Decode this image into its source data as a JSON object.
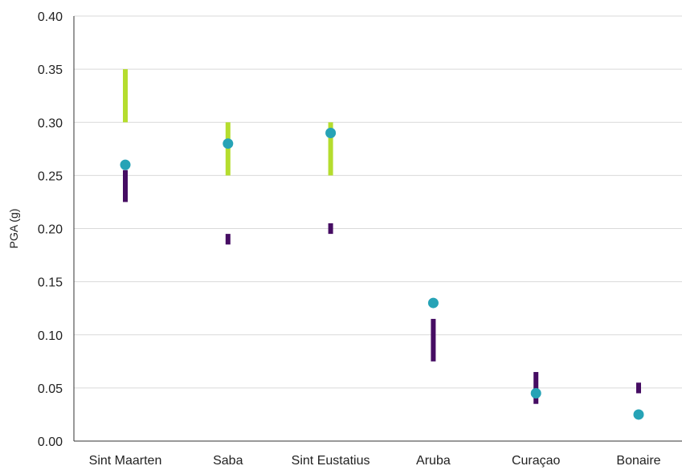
{
  "chart_data": {
    "type": "scatter",
    "title": "",
    "xlabel": "",
    "ylabel": "PGA (g)",
    "ylim": [
      0,
      0.4
    ],
    "yticks": [
      "0.00",
      "0.05",
      "0.10",
      "0.15",
      "0.20",
      "0.25",
      "0.30",
      "0.35",
      "0.40"
    ],
    "categories": [
      "Sint Maarten",
      "Saba",
      "Sint Eustatius",
      "Aruba",
      "Curaçao",
      "Bonaire"
    ],
    "grid": true,
    "legend": "none",
    "series": [
      {
        "kind": "range",
        "color": "#b5dd2e",
        "ranges": [
          [
            0.3,
            0.35
          ],
          [
            0.25,
            0.3
          ],
          [
            0.25,
            0.3
          ],
          null,
          null,
          null
        ]
      },
      {
        "kind": "range",
        "color": "#460d63",
        "ranges": [
          [
            0.225,
            0.255
          ],
          [
            0.185,
            0.195
          ],
          [
            0.195,
            0.205
          ],
          [
            0.075,
            0.115
          ],
          [
            0.035,
            0.065
          ],
          [
            0.045,
            0.055
          ]
        ]
      },
      {
        "kind": "point",
        "color": "#26a3b6",
        "values": [
          0.26,
          0.28,
          0.29,
          0.13,
          0.045,
          0.025
        ]
      }
    ]
  }
}
